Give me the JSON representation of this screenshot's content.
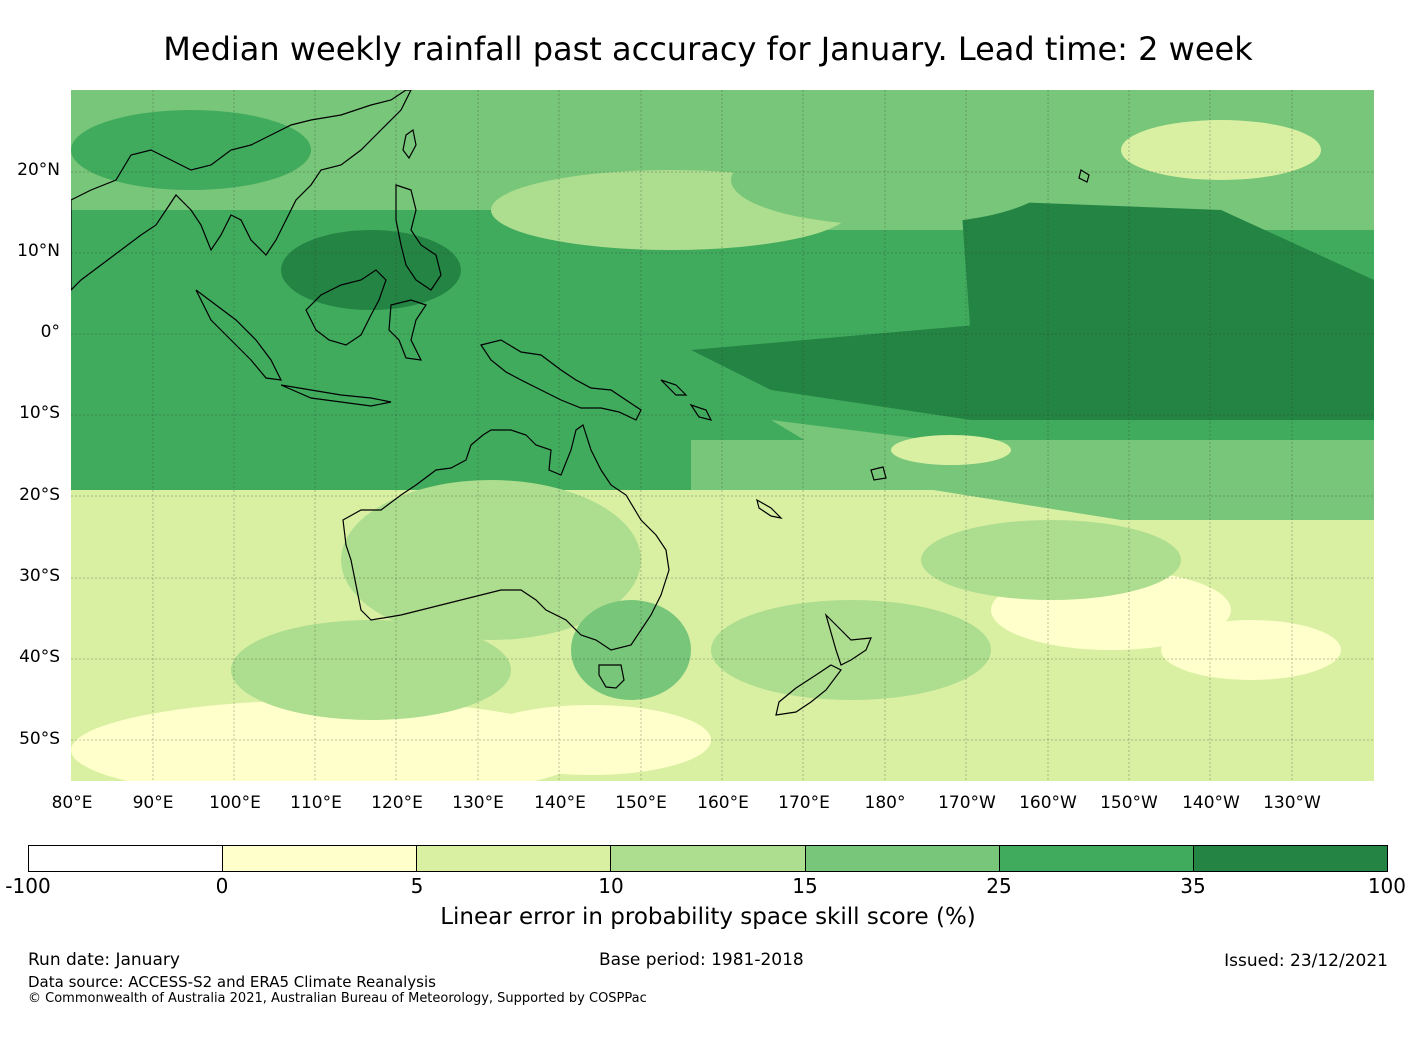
{
  "title": "Median weekly rainfall past accuracy for January. Lead time: 2 week",
  "map": {
    "lat_labels": [
      "20°N",
      "10°N",
      "0°",
      "10°S",
      "20°S",
      "30°S",
      "40°S",
      "50°S"
    ],
    "lon_labels": [
      "80°E",
      "90°E",
      "100°E",
      "110°E",
      "120°E",
      "130°E",
      "140°E",
      "150°E",
      "160°E",
      "170°E",
      "180°",
      "170°W",
      "160°W",
      "150°W",
      "140°W",
      "130°W"
    ],
    "landmasses": [
      "Australia",
      "New Zealand",
      "Papua New Guinea",
      "Indonesia",
      "Philippines",
      "Southeast Asia"
    ]
  },
  "colorbar": {
    "ticks": [
      "-100",
      "0",
      "5",
      "10",
      "15",
      "25",
      "35",
      "100"
    ],
    "colors": [
      "#ffffff",
      "#ffffcc",
      "#d9f0a3",
      "#addd8e",
      "#78c679",
      "#41ab5d",
      "#238443"
    ],
    "label": "Linear error in probability space skill score (%)"
  },
  "footer": {
    "run_date": "Run date: January",
    "base_period": "Base period: 1981-2018",
    "issued": "Issued: 23/12/2021",
    "data_source": "Data source: ACCESS-S2 and ERA5 Climate Reanalysis",
    "copyright": "© Commonwealth of Australia 2021, Australian Bureau of Meteorology, Supported by COSPPac"
  }
}
